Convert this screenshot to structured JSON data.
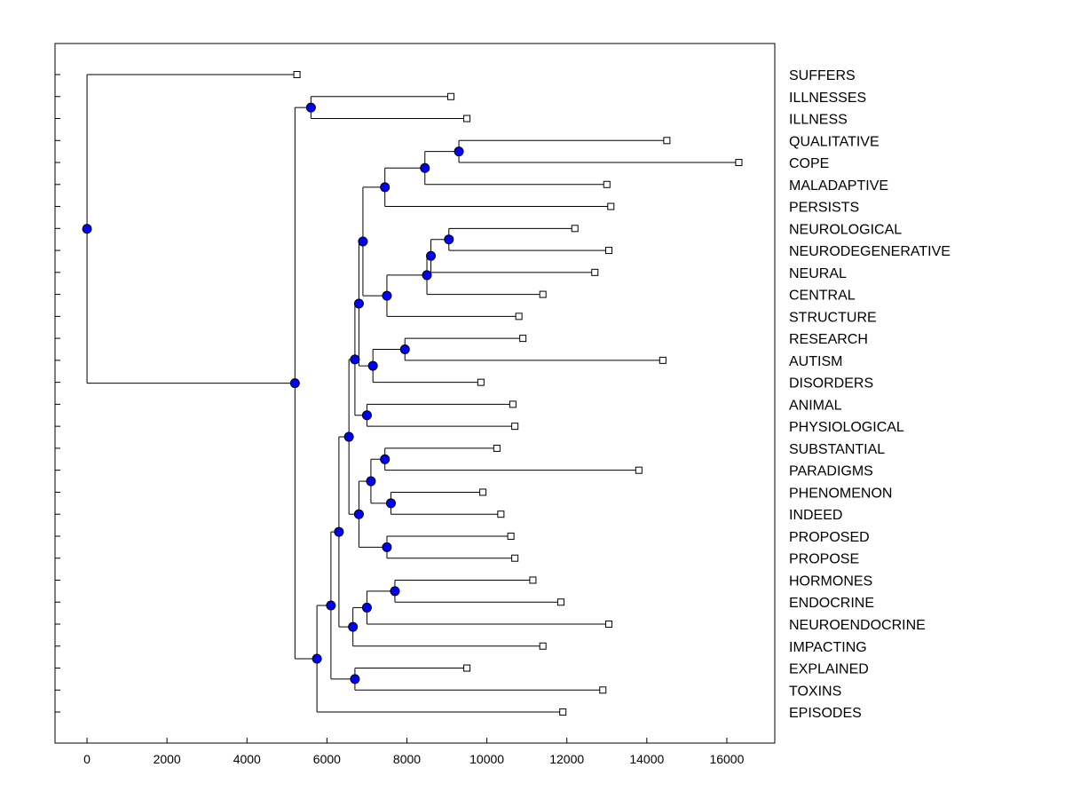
{
  "chart_data": {
    "type": "dendrogram",
    "orientation": "horizontal",
    "xlim": [
      -800,
      17200
    ],
    "xticks": [
      0,
      2000,
      4000,
      6000,
      8000,
      10000,
      12000,
      14000,
      16000
    ],
    "leaves": [
      {
        "label": "SUFFERS",
        "value": 5250
      },
      {
        "label": "ILLNESSES",
        "value": 9100
      },
      {
        "label": "ILLNESS",
        "value": 9500
      },
      {
        "label": "QUALITATIVE",
        "value": 14500
      },
      {
        "label": "COPE",
        "value": 16300
      },
      {
        "label": "MALADAPTIVE",
        "value": 13000
      },
      {
        "label": "PERSISTS",
        "value": 13100
      },
      {
        "label": "NEUROLOGICAL",
        "value": 12200
      },
      {
        "label": "NEURODEGENERATIVE",
        "value": 13050
      },
      {
        "label": "NEURAL",
        "value": 12700
      },
      {
        "label": "CENTRAL",
        "value": 11400
      },
      {
        "label": "STRUCTURE",
        "value": 10800
      },
      {
        "label": "RESEARCH",
        "value": 10900
      },
      {
        "label": "AUTISM",
        "value": 14400
      },
      {
        "label": "DISORDERS",
        "value": 9850
      },
      {
        "label": "ANIMAL",
        "value": 10650
      },
      {
        "label": "PHYSIOLOGICAL",
        "value": 10700
      },
      {
        "label": "SUBSTANTIAL",
        "value": 10250
      },
      {
        "label": "PARADIGMS",
        "value": 13800
      },
      {
        "label": "PHENOMENON",
        "value": 9900
      },
      {
        "label": "INDEED",
        "value": 10350
      },
      {
        "label": "PROPOSED",
        "value": 10600
      },
      {
        "label": "PROPOSE",
        "value": 10700
      },
      {
        "label": "HORMONES",
        "value": 11150
      },
      {
        "label": "ENDOCRINE",
        "value": 11850
      },
      {
        "label": "NEUROENDOCRINE",
        "value": 13050
      },
      {
        "label": "IMPACTING",
        "value": 11400
      },
      {
        "label": "EXPLAINED",
        "value": 9500
      },
      {
        "label": "TOXINS",
        "value": 12900
      },
      {
        "label": "EPISODES",
        "value": 11900
      }
    ],
    "merges": [
      {
        "id": "N1",
        "children": [
          "ILLNESSES",
          "ILLNESS"
        ],
        "height": 5600
      },
      {
        "id": "N2",
        "children": [
          "QUALITATIVE",
          "COPE"
        ],
        "height": 9300
      },
      {
        "id": "N3",
        "children": [
          "N2",
          "MALADAPTIVE"
        ],
        "height": 8450
      },
      {
        "id": "N4",
        "children": [
          "N3",
          "PERSISTS"
        ],
        "height": 7450
      },
      {
        "id": "N5",
        "children": [
          "NEUROLOGICAL",
          "NEURODEGENERATIVE"
        ],
        "height": 9050
      },
      {
        "id": "N6",
        "children": [
          "N5",
          "NEURAL"
        ],
        "height": 8600
      },
      {
        "id": "N7",
        "children": [
          "N6",
          "CENTRAL"
        ],
        "height": 8500
      },
      {
        "id": "N8",
        "children": [
          "N7",
          "STRUCTURE"
        ],
        "height": 7500
      },
      {
        "id": "N9",
        "children": [
          "N4",
          "N8"
        ],
        "height": 6900
      },
      {
        "id": "N10",
        "children": [
          "RESEARCH",
          "AUTISM"
        ],
        "height": 7950
      },
      {
        "id": "N11",
        "children": [
          "N10",
          "DISORDERS"
        ],
        "height": 7150
      },
      {
        "id": "N12",
        "children": [
          "N9",
          "N11"
        ],
        "height": 6800
      },
      {
        "id": "N13",
        "children": [
          "ANIMAL",
          "PHYSIOLOGICAL"
        ],
        "height": 7000
      },
      {
        "id": "N14",
        "children": [
          "N12",
          "N13"
        ],
        "height": 6700
      },
      {
        "id": "N15",
        "children": [
          "SUBSTANTIAL",
          "PARADIGMS"
        ],
        "height": 7450
      },
      {
        "id": "N16",
        "children": [
          "PHENOMENON",
          "INDEED"
        ],
        "height": 7600
      },
      {
        "id": "N17",
        "children": [
          "N15",
          "N16"
        ],
        "height": 7100
      },
      {
        "id": "N18",
        "children": [
          "PROPOSED",
          "PROPOSE"
        ],
        "height": 7500
      },
      {
        "id": "N19",
        "children": [
          "N17",
          "N18"
        ],
        "height": 6800
      },
      {
        "id": "N20",
        "children": [
          "N14",
          "N19"
        ],
        "height": 6550
      },
      {
        "id": "N21",
        "children": [
          "HORMONES",
          "ENDOCRINE"
        ],
        "height": 7700
      },
      {
        "id": "N22",
        "children": [
          "N21",
          "NEUROENDOCRINE"
        ],
        "height": 7000
      },
      {
        "id": "N23",
        "children": [
          "N22",
          "IMPACTING"
        ],
        "height": 6650
      },
      {
        "id": "N24",
        "children": [
          "N20",
          "N23"
        ],
        "height": 6300
      },
      {
        "id": "N25",
        "children": [
          "EXPLAINED",
          "TOXINS"
        ],
        "height": 6700
      },
      {
        "id": "N26",
        "children": [
          "N24",
          "N25"
        ],
        "height": 6100
      },
      {
        "id": "N27",
        "children": [
          "N26",
          "EPISODES"
        ],
        "height": 5750
      },
      {
        "id": "N28",
        "children": [
          "N1",
          "N27"
        ],
        "height": 5200
      },
      {
        "id": "N29",
        "children": [
          "SUFFERS",
          "N28"
        ],
        "height": 0
      }
    ],
    "colors": {
      "node": "#0000ff",
      "leaf_fill": "#ffffff",
      "line": "#000000"
    }
  }
}
